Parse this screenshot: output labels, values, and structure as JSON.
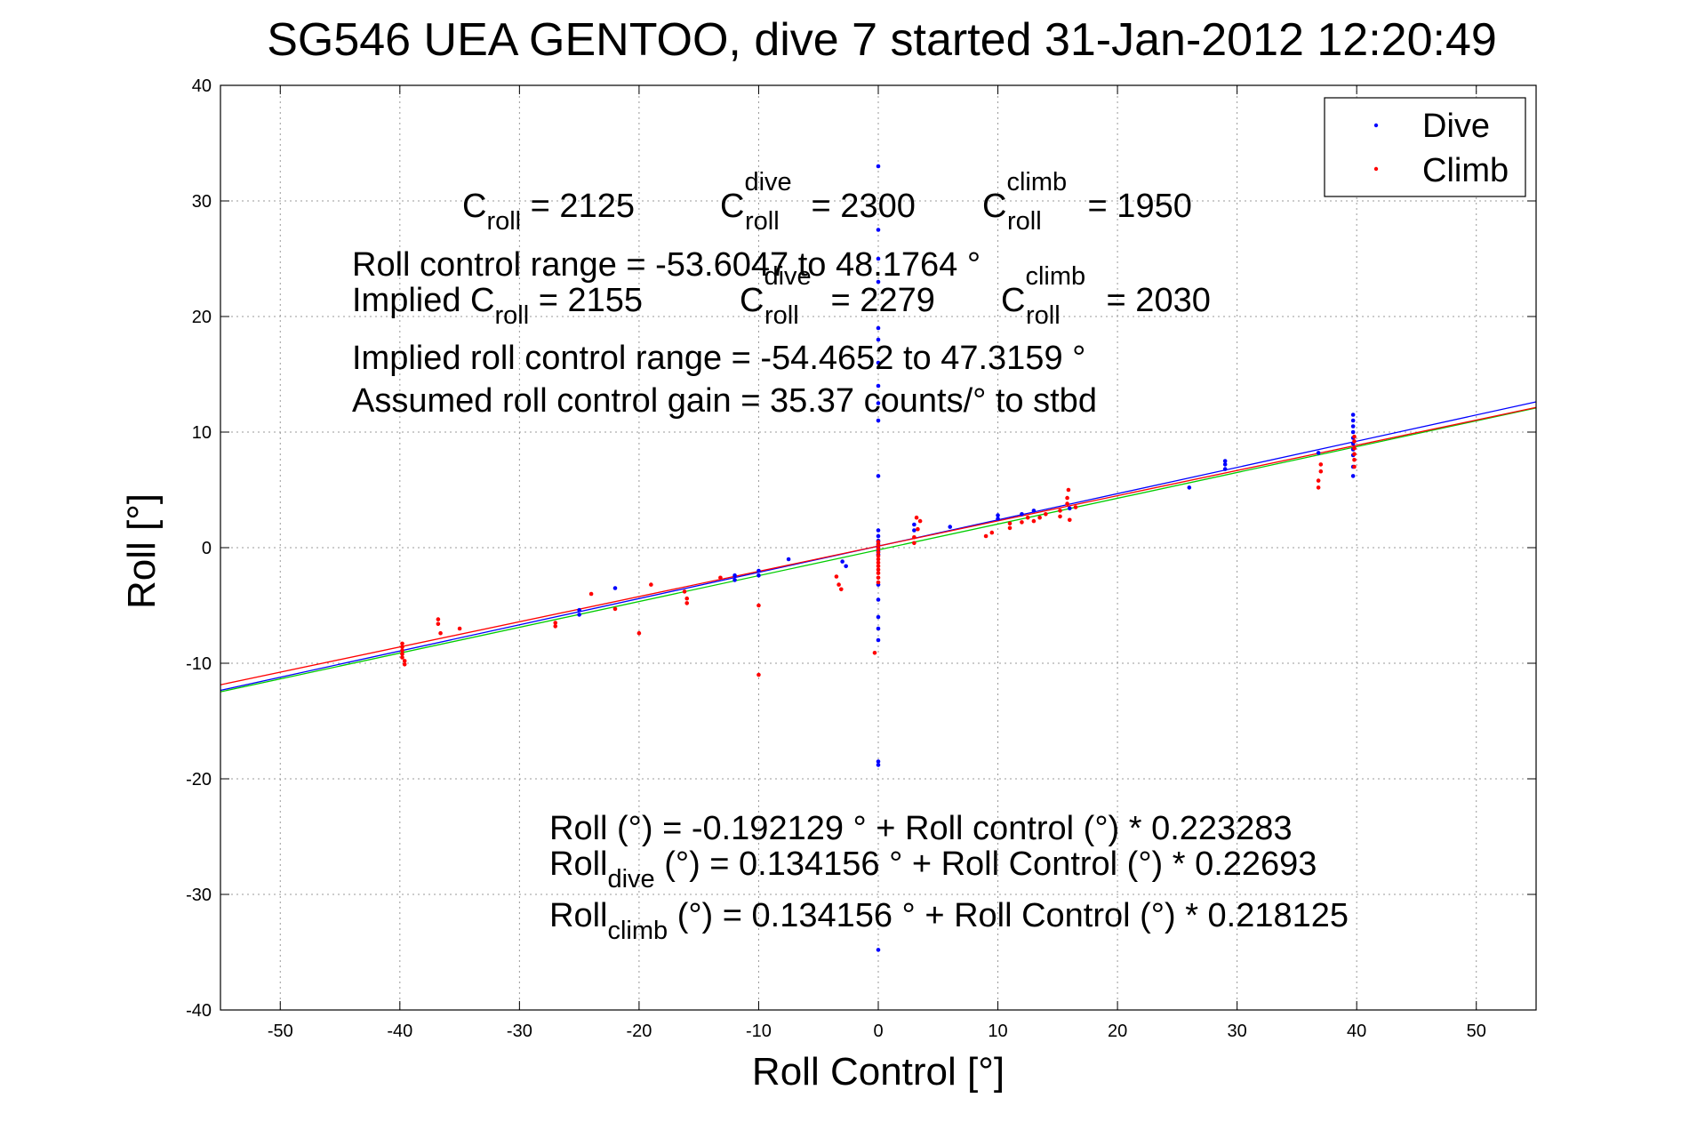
{
  "chart_data": {
    "type": "scatter",
    "title": "SG546 UEA GENTOO, dive 7 started 31-Jan-2012 12:20:49",
    "xlabel": "Roll Control [°]",
    "ylabel": "Roll [°]",
    "xlim": [
      -55,
      55
    ],
    "ylim": [
      -40,
      40
    ],
    "xticks": [
      -50,
      -40,
      -30,
      -20,
      -10,
      0,
      10,
      20,
      30,
      40,
      50
    ],
    "yticks": [
      -40,
      -30,
      -20,
      -10,
      0,
      10,
      20,
      30,
      40
    ],
    "xtick_labels": [
      "-50",
      "-40",
      "-30",
      "-20",
      "-10",
      "0",
      "10",
      "20",
      "30",
      "40",
      "50"
    ],
    "ytick_labels": [
      "-40",
      "-30",
      "-20",
      "-10",
      "0",
      "10",
      "20",
      "30",
      "40"
    ],
    "grid": true,
    "legend_position": "top-right",
    "series": [
      {
        "name": "Dive",
        "color": "#0000ff",
        "points": [
          [
            0,
            33
          ],
          [
            0,
            27.5
          ],
          [
            0,
            25
          ],
          [
            0,
            23
          ],
          [
            0,
            19
          ],
          [
            0,
            18
          ],
          [
            0,
            16
          ],
          [
            0,
            14
          ],
          [
            0,
            12.5
          ],
          [
            0,
            11
          ],
          [
            0,
            6.2
          ],
          [
            0,
            1.5
          ],
          [
            0,
            1.0
          ],
          [
            0,
            0.6
          ],
          [
            0,
            0.3
          ],
          [
            0,
            0.0
          ],
          [
            0,
            -0.3
          ],
          [
            0,
            -0.6
          ],
          [
            0,
            -3.2
          ],
          [
            0,
            -4.5
          ],
          [
            0,
            -6
          ],
          [
            0,
            -7
          ],
          [
            0,
            -8
          ],
          [
            0,
            -18.5
          ],
          [
            0,
            -18.8
          ],
          [
            0,
            -34.8
          ],
          [
            -25,
            -5.4
          ],
          [
            -25,
            -5.8
          ],
          [
            -22,
            -3.5
          ],
          [
            -12,
            -2.4
          ],
          [
            -12,
            -2.8
          ],
          [
            -10,
            -2
          ],
          [
            -10,
            -2.4
          ],
          [
            -7.5,
            -1
          ],
          [
            -3,
            -1.2
          ],
          [
            -2.7,
            -1.6
          ],
          [
            3.0,
            1.5
          ],
          [
            3.0,
            2.0
          ],
          [
            6,
            1.8
          ],
          [
            10,
            2.5
          ],
          [
            10,
            2.8
          ],
          [
            12,
            2.9
          ],
          [
            13,
            3.2
          ],
          [
            16,
            3.4
          ],
          [
            26,
            5.2
          ],
          [
            29,
            6.8
          ],
          [
            29,
            7.2
          ],
          [
            29,
            7.5
          ],
          [
            36.8,
            8.2
          ],
          [
            39.7,
            6.2
          ],
          [
            39.7,
            7.0
          ],
          [
            39.7,
            8.0
          ],
          [
            39.7,
            8.5
          ],
          [
            39.7,
            9.0
          ],
          [
            39.7,
            9.5
          ],
          [
            39.7,
            10.0
          ],
          [
            39.7,
            10.5
          ],
          [
            39.7,
            11.0
          ],
          [
            39.7,
            11.5
          ]
        ]
      },
      {
        "name": "Climb",
        "color": "#ff0000",
        "points": [
          [
            -39.8,
            -8.3
          ],
          [
            -39.8,
            -8.6
          ],
          [
            -39.8,
            -8.9
          ],
          [
            -39.8,
            -9.2
          ],
          [
            -39.8,
            -9.5
          ],
          [
            -39.6,
            -9.8
          ],
          [
            -39.6,
            -10.1
          ],
          [
            -36.8,
            -6.2
          ],
          [
            -36.8,
            -6.6
          ],
          [
            -36.6,
            -7.4
          ],
          [
            -35,
            -7
          ],
          [
            -27,
            -6.5
          ],
          [
            -27,
            -6.8
          ],
          [
            -24,
            -4
          ],
          [
            -22,
            -5.3
          ],
          [
            -20,
            -7.4
          ],
          [
            -19,
            -3.2
          ],
          [
            -16.2,
            -3.8
          ],
          [
            -16,
            -4.4
          ],
          [
            -16,
            -4.8
          ],
          [
            -13.2,
            -2.6
          ],
          [
            -10,
            -5
          ],
          [
            -10,
            -11
          ],
          [
            -3.5,
            -2.5
          ],
          [
            -3.3,
            -3.2
          ],
          [
            -3.1,
            -3.6
          ],
          [
            0,
            0.5
          ],
          [
            0,
            0.2
          ],
          [
            0,
            -0.1
          ],
          [
            0,
            -0.4
          ],
          [
            0,
            -0.7
          ],
          [
            0,
            -1.0
          ],
          [
            0,
            -1.3
          ],
          [
            0,
            -1.6
          ],
          [
            0,
            -1.9
          ],
          [
            0,
            -2.2
          ],
          [
            0,
            -2.6
          ],
          [
            0,
            -3.0
          ],
          [
            -0.3,
            -9.1
          ],
          [
            3,
            0.4
          ],
          [
            3,
            0.9
          ],
          [
            3.3,
            1.6
          ],
          [
            3.5,
            2.3
          ],
          [
            3.2,
            2.6
          ],
          [
            9,
            1.0
          ],
          [
            9.5,
            1.3
          ],
          [
            11,
            1.7
          ],
          [
            11,
            2.1
          ],
          [
            12,
            2.2
          ],
          [
            12.5,
            2.6
          ],
          [
            13,
            2.3
          ],
          [
            13.5,
            2.6
          ],
          [
            14,
            2.9
          ],
          [
            15.2,
            2.7
          ],
          [
            15.2,
            3.2
          ],
          [
            15.8,
            3.8
          ],
          [
            15.8,
            4.3
          ],
          [
            15.9,
            5.0
          ],
          [
            16,
            2.4
          ],
          [
            16.5,
            3.5
          ],
          [
            36.8,
            5.2
          ],
          [
            36.8,
            5.8
          ],
          [
            37,
            6.6
          ],
          [
            37,
            7.2
          ],
          [
            39.8,
            7.0
          ],
          [
            39.8,
            7.6
          ],
          [
            39.8,
            8.1
          ],
          [
            39.8,
            8.6
          ],
          [
            39.8,
            9.2
          ],
          [
            39.8,
            9.6
          ]
        ]
      }
    ],
    "fit_lines": [
      {
        "color": "#0000ff",
        "intercept": 0.134156,
        "slope": 0.22693
      },
      {
        "color": "#00cc00",
        "intercept": -0.192129,
        "slope": 0.223283
      },
      {
        "color": "#ff0000",
        "intercept": 0.134156,
        "slope": 0.218125
      }
    ]
  },
  "annotations": {
    "c_roll_label": "C",
    "c_roll_sub": "roll",
    "c_roll_value": " = 2125",
    "c_dive_label": "C",
    "c_dive_sup": "dive",
    "c_dive_sub": "roll",
    "c_dive_value": " = 2300",
    "c_climb_label": "C",
    "c_climb_sup": "climb",
    "c_climb_sub": "roll",
    "c_climb_value": " = 1950",
    "range_text": "Roll control range = -53.6047 to 48.1764 °",
    "implied_prefix": "Implied C",
    "implied_sub": "roll",
    "implied_value": " = 2155",
    "implied_dive_label": "C",
    "implied_dive_sup": "dive",
    "implied_dive_sub": "roll",
    "implied_dive_value": " = 2279",
    "implied_climb_label": "C",
    "implied_climb_sup": "climb",
    "implied_climb_sub": "roll",
    "implied_climb_value": " = 2030",
    "implied_range_text": "Implied roll control range = -54.4652 to 47.3159 °",
    "gain_text": "Assumed roll control gain = 35.37 counts/° to stbd",
    "eq1_text": "Roll (°) = -0.192129 ° + Roll control (°) * 0.223283",
    "eq2_prefix": "Roll",
    "eq2_sub": "dive",
    "eq2_rest": " (°) = 0.134156 ° + Roll Control (°) * 0.22693",
    "eq3_prefix": "Roll",
    "eq3_sub": "climb",
    "eq3_rest": " (°) = 0.134156 ° + Roll Control (°) * 0.218125"
  }
}
